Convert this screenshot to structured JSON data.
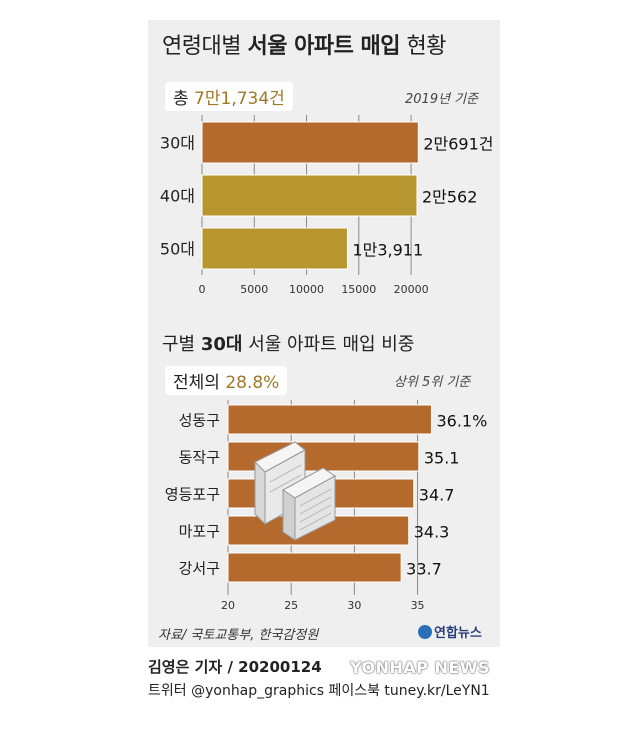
{
  "title": {
    "part1": "연령대별",
    "part2": "서울 아파트 매입",
    "part3": "현황"
  },
  "colors": {
    "bar_30": "#b56a2d",
    "bar_other": "#b8962f",
    "bar2": "#b56a2d",
    "accent_text": "#a07828",
    "panel": "#efefef"
  },
  "summary1": {
    "label": "총 ",
    "value": "7만1,734건"
  },
  "basis1": "2019년 기준",
  "subtitle2": {
    "part1": "구별",
    "part2": "30대",
    "part3": "서울 아파트 매입 비중"
  },
  "summary2": {
    "label": "전체의 ",
    "value": "28.8%"
  },
  "basis2": "상위 5위 기준",
  "source": "자료/ 국토교통부, 한국감정원",
  "logo_text": "연합뉴스",
  "reporter": "김영은 기자 / 20200124",
  "sns": "트위터 @yonhap_graphics  페이스북 tuney.kr/LeYN1",
  "watermark": "YONHAP NEWS",
  "chart_data": [
    {
      "type": "bar",
      "orientation": "horizontal",
      "categories": [
        "30대",
        "40대",
        "50대"
      ],
      "values": [
        20691,
        20562,
        13911
      ],
      "value_labels": [
        "2만691건",
        "2만562",
        "1만3,911"
      ],
      "xlim": [
        0,
        22000
      ],
      "xticks": [
        0,
        5000,
        10000,
        15000,
        20000
      ],
      "grid": true
    },
    {
      "type": "bar",
      "orientation": "horizontal",
      "categories": [
        "성동구",
        "동작구",
        "영등포구",
        "마포구",
        "강서구"
      ],
      "values": [
        36.1,
        35.1,
        34.7,
        34.3,
        33.7
      ],
      "value_labels": [
        "36.1%",
        "35.1",
        "34.7",
        "34.3",
        "33.7"
      ],
      "xlim": [
        20,
        36.3
      ],
      "xticks": [
        20,
        25,
        30,
        35
      ],
      "grid": true
    }
  ]
}
